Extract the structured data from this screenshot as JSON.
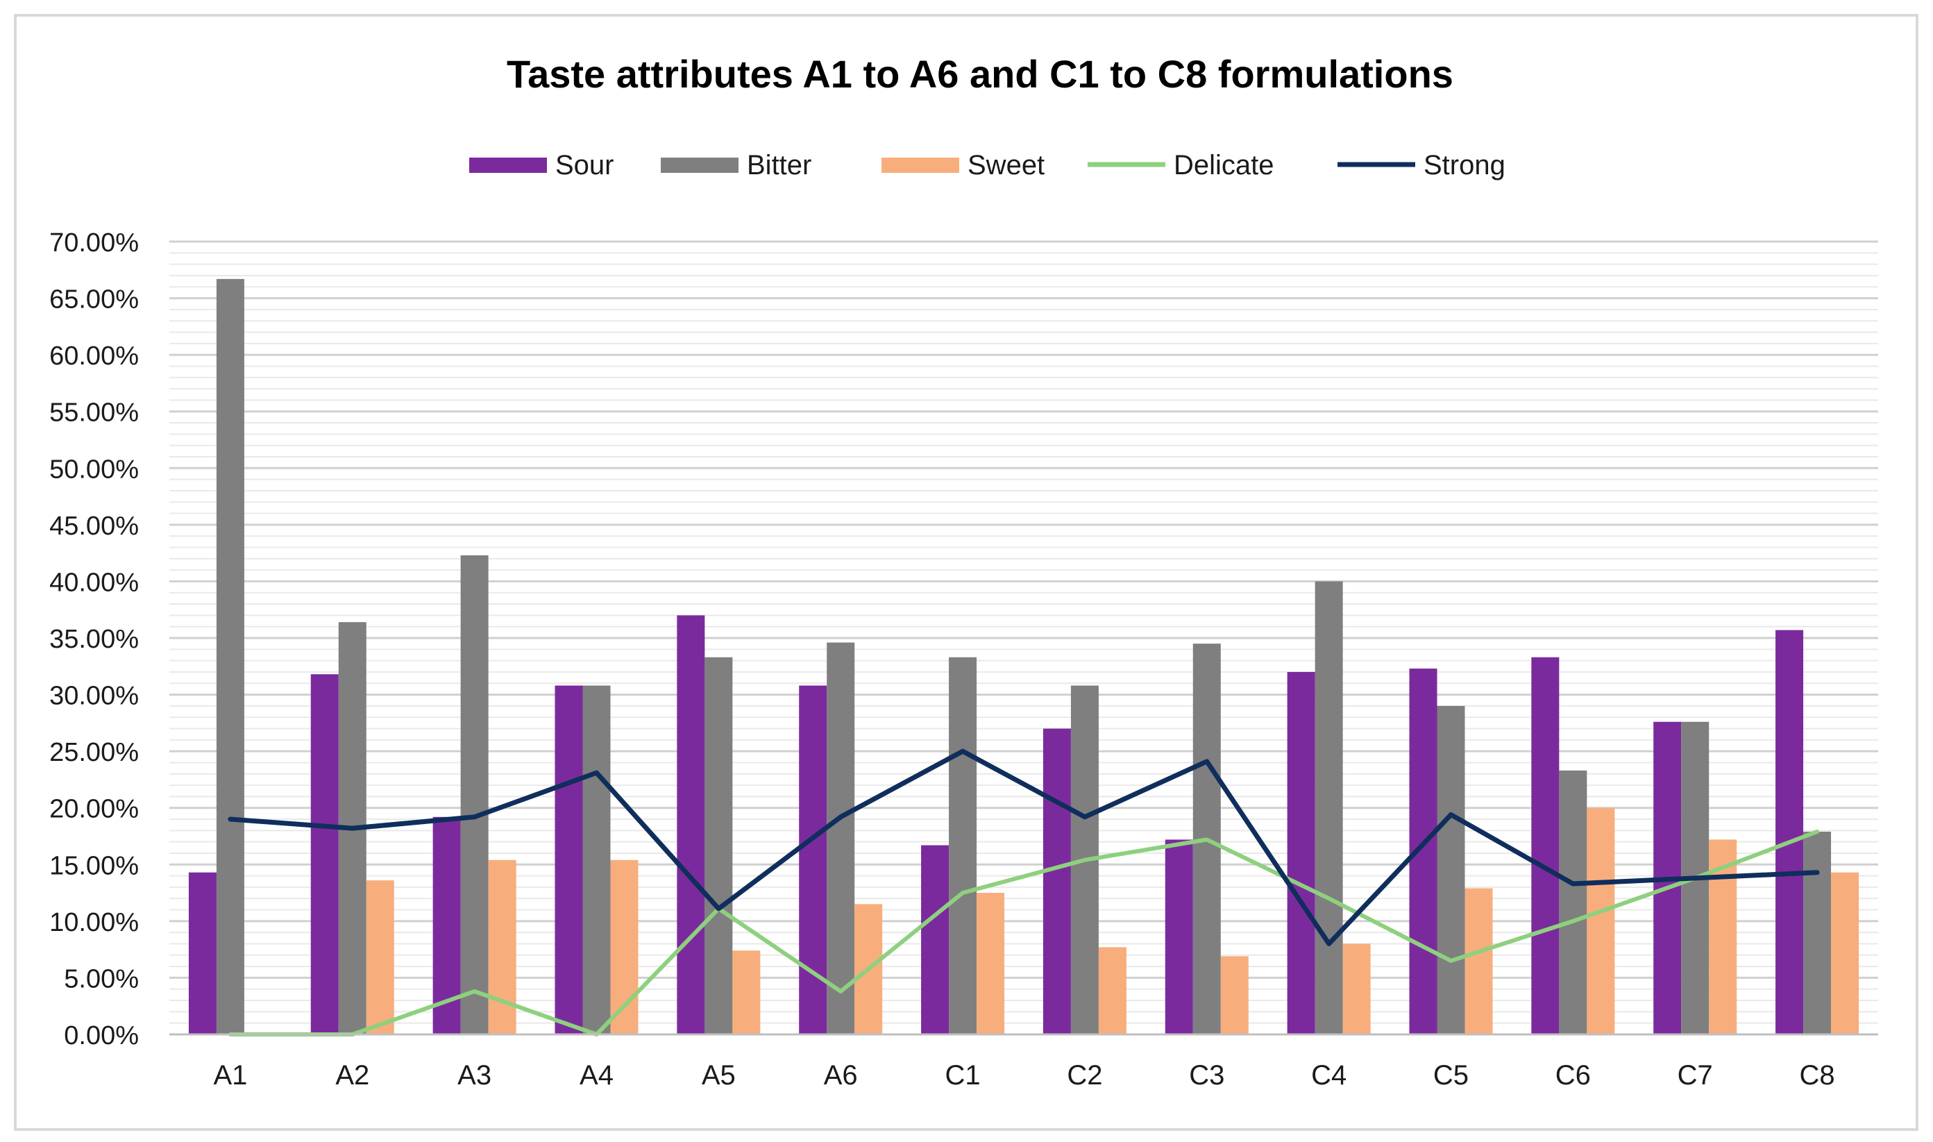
{
  "chart_data": {
    "type": "bar",
    "title": "Taste attributes A1 to A6 and C1 to C8 formulations",
    "xlabel": "",
    "ylabel": "",
    "ylim": [
      0,
      70
    ],
    "y_tick_step": 5,
    "y_tick_labels": [
      "0.00%",
      "5.00%",
      "10.00%",
      "15.00%",
      "20.00%",
      "25.00%",
      "30.00%",
      "35.00%",
      "40.00%",
      "45.00%",
      "50.00%",
      "55.00%",
      "60.00%",
      "65.00%",
      "70.00%"
    ],
    "minor_grid_step": 1,
    "grid": true,
    "legend_position": "top",
    "categories": [
      "A1",
      "A2",
      "A3",
      "A4",
      "A5",
      "A6",
      "C1",
      "C2",
      "C3",
      "C4",
      "C5",
      "C6",
      "C7",
      "C8"
    ],
    "series": [
      {
        "name": "Sour",
        "kind": "bar",
        "color": "#7B2A9E",
        "values": [
          14.3,
          31.8,
          19.2,
          30.8,
          37.0,
          30.8,
          16.7,
          27.0,
          17.2,
          32.0,
          32.3,
          33.3,
          27.6,
          35.7
        ]
      },
      {
        "name": "Bitter",
        "kind": "bar",
        "color": "#7F7F7F",
        "values": [
          66.7,
          36.4,
          42.3,
          30.8,
          33.3,
          34.6,
          33.3,
          30.8,
          34.5,
          40.0,
          29.0,
          23.3,
          27.6,
          17.9
        ]
      },
      {
        "name": "Sweet",
        "kind": "bar",
        "color": "#F7AE7C",
        "values": [
          0,
          13.6,
          15.4,
          15.4,
          7.4,
          11.5,
          12.5,
          7.7,
          6.9,
          8.0,
          12.9,
          20.0,
          17.2,
          14.3
        ]
      },
      {
        "name": "Delicate",
        "kind": "line",
        "color": "#8ED07E",
        "values": [
          0,
          0,
          3.8,
          0,
          11.1,
          3.8,
          12.5,
          15.4,
          17.2,
          12.0,
          6.5,
          10.0,
          13.8,
          17.9
        ]
      },
      {
        "name": "Strong",
        "kind": "line",
        "color": "#0F2E5C",
        "values": [
          19.0,
          18.2,
          19.2,
          23.1,
          11.1,
          19.2,
          25.0,
          19.2,
          24.1,
          8.0,
          19.4,
          13.3,
          13.8,
          14.3
        ]
      }
    ]
  }
}
